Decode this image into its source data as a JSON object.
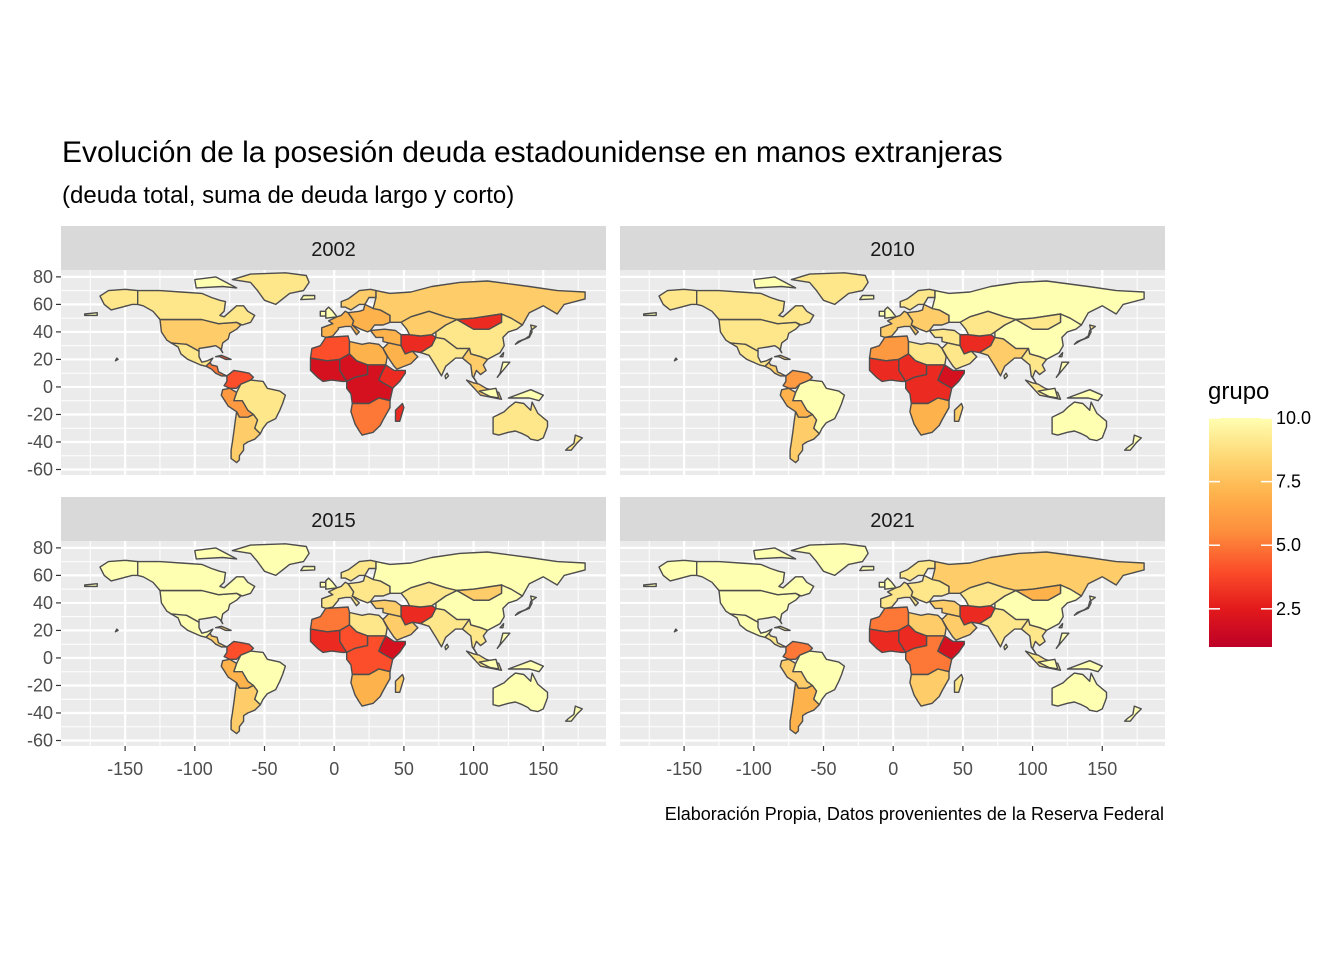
{
  "title": "Evolución de la posesión deuda estadounidense en manos extranjeras",
  "subtitle": "(deuda total, suma de deuda largo y corto)",
  "caption": "Elaboración Propia, Datos provenientes de la Reserva Federal",
  "colors": {
    "panel_background": "#ebebeb",
    "strip_background": "#d9d9d9",
    "grid": "#ffffff",
    "border": "#4d4d4d",
    "scale": [
      "#bd0026",
      "#e31a1c",
      "#fc4e2a",
      "#fd8d3c",
      "#feb24c",
      "#fed976",
      "#ffffb2"
    ]
  },
  "chart_data": {
    "type": "choropleth",
    "facets": [
      "2002",
      "2010",
      "2015",
      "2021"
    ],
    "x": {
      "ticks": [
        -150,
        -100,
        -50,
        0,
        50,
        100,
        150
      ],
      "range": [
        -196,
        195
      ]
    },
    "y": {
      "ticks": [
        80,
        60,
        40,
        20,
        0,
        -20,
        -40,
        -60
      ],
      "range": [
        -64,
        85
      ]
    },
    "legend": {
      "title": "grupo",
      "position": "right",
      "range": [
        1,
        10
      ],
      "breaks": [
        2.5,
        5.0,
        7.5,
        10.0
      ],
      "labels": [
        "2.5",
        "5.0",
        "7.5",
        "10.0"
      ]
    },
    "grid": true,
    "regions": [
      "north_america",
      "alaska",
      "canada_arctic",
      "greenland",
      "mexico",
      "central_america",
      "caribbean_cuba",
      "colombia_venezuela",
      "brazil",
      "peru_bolivia",
      "argentina_chile",
      "west_europe",
      "scandinavia",
      "east_europe",
      "russia",
      "north_west_africa",
      "west_africa_coast",
      "north_east_africa",
      "sahel_central",
      "horn_africa",
      "central_africa",
      "south_africa",
      "madagascar",
      "middle_east",
      "arabia",
      "iran_afghanistan",
      "india",
      "china",
      "mongolia",
      "kazakhstan",
      "southeast_asia",
      "japan",
      "indonesia",
      "australia",
      "new_zealand"
    ],
    "values": {
      "2002": [
        8,
        9,
        9,
        9,
        9,
        5,
        4,
        4,
        9,
        6,
        8,
        7,
        8,
        7,
        8,
        4,
        2,
        7,
        2,
        3,
        2,
        5,
        3,
        7,
        7,
        3,
        9,
        9,
        3,
        8,
        8,
        9,
        8,
        9,
        9
      ],
      "2010": [
        9,
        9,
        9,
        9,
        9,
        8,
        8,
        6,
        10,
        7,
        8,
        8,
        9,
        8,
        10,
        6,
        3,
        9,
        3,
        2,
        3,
        7,
        8,
        9,
        9,
        3,
        8,
        10,
        9,
        9,
        9,
        9,
        9,
        10,
        10
      ],
      "2015": [
        10,
        10,
        10,
        10,
        10,
        8,
        8,
        4,
        10,
        7,
        8,
        9,
        9,
        9,
        10,
        5,
        3,
        9,
        4,
        2,
        4,
        7,
        8,
        8,
        8,
        3,
        9,
        10,
        8,
        9,
        9,
        10,
        9,
        10,
        10
      ],
      "2021": [
        10,
        10,
        10,
        10,
        10,
        9,
        9,
        5,
        10,
        8,
        7,
        9,
        9,
        9,
        8,
        5,
        3,
        8,
        3,
        2,
        5,
        8,
        9,
        8,
        8,
        3,
        9,
        10,
        7,
        9,
        9,
        10,
        9,
        10,
        10
      ]
    }
  }
}
